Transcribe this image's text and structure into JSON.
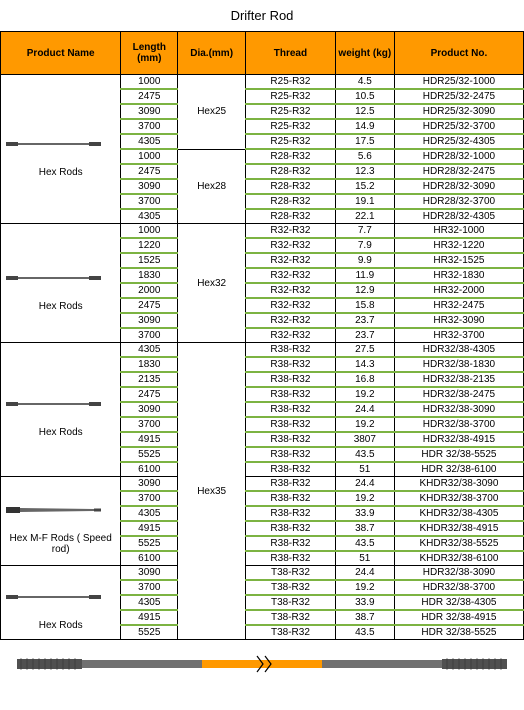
{
  "title": "Drifter Rod",
  "headers": [
    "Product Name",
    "Length (mm)",
    "Dia.(mm)",
    "Thread",
    "weight (kg)",
    "Product No."
  ],
  "groups": [
    {
      "label": "Hex  Rods",
      "dia_groups": [
        {
          "dia": "Hex25",
          "rows": [
            {
              "len": "1000",
              "thread": "R25-R32",
              "wt": "4.5",
              "pn": "HDR25/32-1000"
            },
            {
              "len": "2475",
              "thread": "R25-R32",
              "wt": "10.5",
              "pn": "HDR25/32-2475"
            },
            {
              "len": "3090",
              "thread": "R25-R32",
              "wt": "12.5",
              "pn": "HDR25/32-3090"
            },
            {
              "len": "3700",
              "thread": "R25-R32",
              "wt": "14.9",
              "pn": "HDR25/32-3700"
            },
            {
              "len": "4305",
              "thread": "R25-R32",
              "wt": "17.5",
              "pn": "HDR25/32-4305"
            }
          ]
        },
        {
          "dia": "Hex28",
          "rows": [
            {
              "len": "1000",
              "thread": "R28-R32",
              "wt": "5.6",
              "pn": "HDR28/32-1000"
            },
            {
              "len": "2475",
              "thread": "R28-R32",
              "wt": "12.3",
              "pn": "HDR28/32-2475"
            },
            {
              "len": "3090",
              "thread": "R28-R32",
              "wt": "15.2",
              "pn": "HDR28/32-3090"
            },
            {
              "len": "3700",
              "thread": "R28-R32",
              "wt": "19.1",
              "pn": "HDR28/32-3700"
            },
            {
              "len": "4305",
              "thread": "R28-R32",
              "wt": "22.1",
              "pn": "HDR28/32-4305"
            }
          ]
        }
      ]
    },
    {
      "label": "Hex  Rods",
      "dia_groups": [
        {
          "dia": "Hex32",
          "rows": [
            {
              "len": "1000",
              "thread": "R32-R32",
              "wt": "7.7",
              "pn": "HR32-1000"
            },
            {
              "len": "1220",
              "thread": "R32-R32",
              "wt": "7.9",
              "pn": "HR32-1220"
            },
            {
              "len": "1525",
              "thread": "R32-R32",
              "wt": "9.9",
              "pn": "HR32-1525"
            },
            {
              "len": "1830",
              "thread": "R32-R32",
              "wt": "11.9",
              "pn": "HR32-1830"
            },
            {
              "len": "2000",
              "thread": "R32-R32",
              "wt": "12.9",
              "pn": "HR32-2000"
            },
            {
              "len": "2475",
              "thread": "R32-R32",
              "wt": "15.8",
              "pn": "HR32-2475"
            },
            {
              "len": "3090",
              "thread": "R32-R32",
              "wt": "23.7",
              "pn": "HR32-3090"
            },
            {
              "len": "3700",
              "thread": "R32-R32",
              "wt": "23.7",
              "pn": "HR32-3700"
            }
          ]
        }
      ]
    },
    {
      "label": "Hex  Rods",
      "rows": [
        {
          "len": "4305",
          "thread": "R38-R32",
          "wt": "27.5",
          "pn": "HDR32/38-4305"
        },
        {
          "len": "1830",
          "thread": "R38-R32",
          "wt": "14.3",
          "pn": "HDR32/38-1830"
        },
        {
          "len": "2135",
          "thread": "R38-R32",
          "wt": "16.8",
          "pn": "HDR32/38-2135"
        },
        {
          "len": "2475",
          "thread": "R38-R32",
          "wt": "19.2",
          "pn": "HDR32/38-2475"
        },
        {
          "len": "3090",
          "thread": "R38-R32",
          "wt": "24.4",
          "pn": "HDR32/38-3090"
        },
        {
          "len": "3700",
          "thread": "R38-R32",
          "wt": "19.2",
          "pn": "HDR32/38-3700"
        },
        {
          "len": "4915",
          "thread": "R38-R32",
          "wt": "3807",
          "pn": "HDR32/38-4915"
        },
        {
          "len": "5525",
          "thread": "R38-R32",
          "wt": "43.5",
          "pn": "HDR 32/38-5525"
        },
        {
          "len": "6100",
          "thread": "R38-R32",
          "wt": "51",
          "pn": "HDR 32/38-6100"
        }
      ]
    },
    {
      "label": "Hex M-F Rods ( Speed rod)",
      "rows": [
        {
          "len": "3090",
          "thread": "R38-R32",
          "wt": "24.4",
          "pn": "KHDR32/38-3090"
        },
        {
          "len": "3700",
          "thread": "R38-R32",
          "wt": "19.2",
          "pn": "KHDR32/38-3700"
        },
        {
          "len": "4305",
          "thread": "R38-R32",
          "wt": "33.9",
          "pn": "KHDR32/38-4305"
        },
        {
          "len": "4915",
          "thread": "R38-R32",
          "wt": "38.7",
          "pn": "KHDR32/38-4915"
        },
        {
          "len": "5525",
          "thread": "R38-R32",
          "wt": "43.5",
          "pn": "KHDR32/38-5525"
        },
        {
          "len": "6100",
          "thread": "R38-R32",
          "wt": "51",
          "pn": "KHDR32/38-6100"
        }
      ]
    },
    {
      "label": "Hex  Rods",
      "rows": [
        {
          "len": "3090",
          "thread": "T38-R32",
          "wt": "24.4",
          "pn": "HDR32/38-3090"
        },
        {
          "len": "3700",
          "thread": "T38-R32",
          "wt": "19.2",
          "pn": "HDR32/38-3700"
        },
        {
          "len": "4305",
          "thread": "T38-R32",
          "wt": "33.9",
          "pn": "HDR 32/38-4305"
        },
        {
          "len": "4915",
          "thread": "T38-R32",
          "wt": "38.7",
          "pn": "HDR 32/38-4915"
        },
        {
          "len": "5525",
          "thread": "T38-R32",
          "wt": "43.5",
          "pn": "HDR 32/38-5525"
        }
      ]
    }
  ],
  "hex35_label": "Hex35",
  "colors": {
    "header_bg": "#ff9900",
    "border": "#000000",
    "green": "#7cb342",
    "rod_dark": "#555555",
    "rod_mid": "#888888",
    "rod_orange": "#ff9900"
  }
}
